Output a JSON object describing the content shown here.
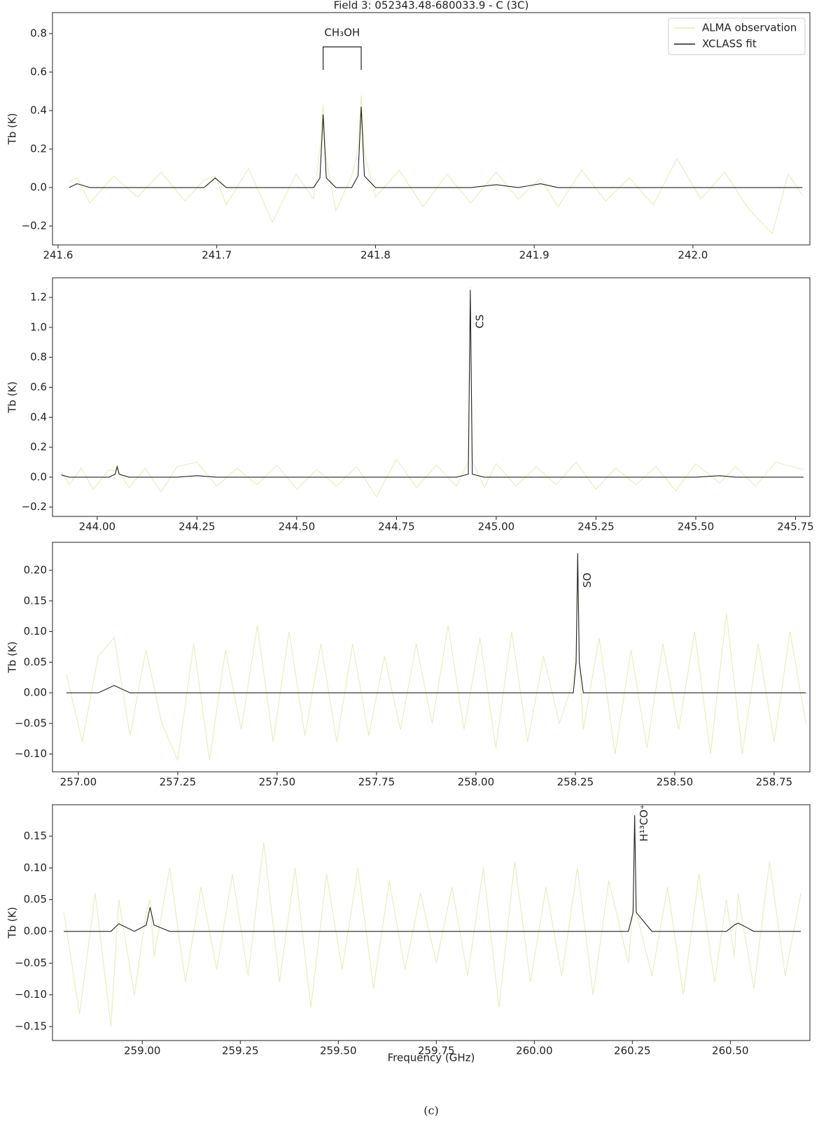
{
  "chart_data": [
    {
      "type": "line",
      "title": "Field 3: 052343.48-680033.9 - C (3C)",
      "y_label": "Tb (K)",
      "annotation": "CH₃OH",
      "legend": "upper right",
      "xlim": [
        241.5965,
        242.0737
      ],
      "ylim": [
        -0.298,
        0.909
      ],
      "xticks": [
        241.6,
        241.7,
        241.8,
        241.9,
        {
          "value": 242,
          "label": "242.0"
        }
      ],
      "yticks": [
        {
          "value": -0.2,
          "label": "−0.2"
        },
        {
          "value": 0,
          "label": "0.0"
        },
        0.2,
        0.4,
        0.6,
        0.8
      ],
      "x": [
        241.607,
        241.612,
        241.62,
        241.635,
        241.65,
        241.665,
        241.68,
        241.692,
        241.699,
        241.706,
        241.72,
        241.735,
        241.75,
        241.761,
        241.765,
        241.767,
        241.769,
        241.775,
        241.785,
        241.789,
        241.791,
        241.793,
        241.8,
        241.815,
        241.83,
        241.845,
        241.86,
        241.876,
        241.89,
        241.904,
        241.915,
        241.93,
        241.945,
        241.96,
        241.975,
        241.99,
        242.005,
        242.02,
        242.035,
        242.05,
        242.06,
        242.069
      ],
      "series": [
        {
          "name": "ALMA observation",
          "color": "#e6ebb4",
          "values": [
            0.03,
            0.05,
            -0.08,
            0.06,
            -0.05,
            0.08,
            -0.07,
            0.04,
            0.06,
            -0.09,
            0.1,
            -0.18,
            0.07,
            -0.06,
            0.2,
            0.43,
            0.15,
            -0.12,
            0.06,
            0.2,
            0.48,
            0.18,
            -0.05,
            0.09,
            -0.1,
            0.07,
            -0.08,
            0.08,
            -0.06,
            0.05,
            -0.1,
            0.09,
            -0.07,
            0.05,
            -0.09,
            0.15,
            -0.06,
            0.08,
            -0.11,
            -0.24,
            0.07,
            -0.04
          ]
        },
        {
          "name": "XCLASS fit",
          "color": "#222222",
          "values": [
            0,
            0.02,
            0,
            0,
            0,
            0,
            0,
            0,
            0.05,
            0,
            0,
            0,
            0,
            0,
            0.05,
            0.38,
            0.05,
            0,
            0,
            0.06,
            0.42,
            0.06,
            0,
            0,
            0,
            0,
            0,
            0.015,
            0,
            0.02,
            0,
            0,
            0,
            0,
            0,
            0,
            0,
            0,
            0,
            0,
            0,
            0
          ]
        }
      ]
    },
    {
      "type": "line",
      "y_label": "Tb (K)",
      "annotation": "CS",
      "xlim": [
        243.888,
        245.786
      ],
      "ylim": [
        -0.262,
        1.331
      ],
      "xticks": [
        {
          "value": 244,
          "label": "244.00"
        },
        244.25,
        {
          "value": 244.5,
          "label": "244.50"
        },
        244.75,
        {
          "value": 245,
          "label": "245.00"
        },
        245.25,
        {
          "value": 245.5,
          "label": "245.50"
        },
        245.75
      ],
      "yticks": [
        {
          "value": -0.2,
          "label": "−0.2"
        },
        {
          "value": 0,
          "label": "0.0"
        },
        0.2,
        0.4,
        0.6,
        0.8,
        {
          "value": 1,
          "label": "1.0"
        },
        1.2
      ],
      "x": [
        243.91,
        243.93,
        243.96,
        243.99,
        244.03,
        244.045,
        244.05,
        244.055,
        244.08,
        244.12,
        244.16,
        244.2,
        244.25,
        244.3,
        244.35,
        244.4,
        244.45,
        244.5,
        244.55,
        244.6,
        244.65,
        244.7,
        244.75,
        244.8,
        244.85,
        244.9,
        244.93,
        244.935,
        244.94,
        244.97,
        245,
        245.05,
        245.1,
        245.15,
        245.2,
        245.25,
        245.3,
        245.35,
        245.4,
        245.45,
        245.5,
        245.56,
        245.6,
        245.65,
        245.7,
        245.77
      ],
      "series": [
        {
          "name": "ALMA observation",
          "color": "#e6ebb4",
          "values": [
            0.04,
            -0.05,
            0.06,
            -0.08,
            0.05,
            0.04,
            0.08,
            0.03,
            -0.07,
            0.06,
            -0.1,
            0.07,
            0.1,
            -0.06,
            0.06,
            -0.05,
            0.08,
            -0.08,
            0.05,
            -0.06,
            0.07,
            -0.13,
            0.12,
            -0.07,
            0.08,
            -0.06,
            0.1,
            1.27,
            0.11,
            -0.07,
            0.09,
            -0.06,
            0.07,
            -0.05,
            0.1,
            -0.08,
            0.06,
            -0.05,
            0.07,
            -0.09,
            0.09,
            -0.04,
            0.07,
            -0.06,
            0.1,
            0.05
          ]
        },
        {
          "name": "XCLASS fit",
          "color": "#222222",
          "values": [
            0.015,
            0,
            0,
            0,
            0,
            0.02,
            0.07,
            0.02,
            0,
            0,
            0,
            0,
            0.01,
            0,
            0,
            0,
            0,
            0,
            0,
            0,
            0,
            0,
            0,
            0,
            0,
            0,
            0.02,
            1.25,
            0.02,
            0,
            0,
            0,
            0,
            0,
            0,
            0,
            0,
            0,
            0,
            0,
            0,
            0.01,
            0,
            0,
            0,
            0
          ]
        }
      ]
    },
    {
      "type": "line",
      "y_label": "Tb (K)",
      "annotation": "SO",
      "xlim": [
        256.935,
        258.84
      ],
      "ylim": [
        -0.129,
        0.2457
      ],
      "xticks": [
        {
          "value": 257,
          "label": "257.00"
        },
        257.25,
        {
          "value": 257.5,
          "label": "257.50"
        },
        257.75,
        {
          "value": 258,
          "label": "258.00"
        },
        258.25,
        {
          "value": 258.5,
          "label": "258.50"
        },
        258.75
      ],
      "yticks": [
        {
          "value": -0.1,
          "label": "−0.10"
        },
        {
          "value": -0.05,
          "label": "−0.05"
        },
        {
          "value": 0,
          "label": "0.00"
        },
        0.05,
        {
          "value": 0.1,
          "label": "0.10"
        },
        0.15,
        {
          "value": 0.2,
          "label": "0.20"
        }
      ],
      "x": [
        256.97,
        257.01,
        257.05,
        257.09,
        257.13,
        257.17,
        257.21,
        257.25,
        257.29,
        257.33,
        257.37,
        257.41,
        257.45,
        257.49,
        257.53,
        257.57,
        257.61,
        257.65,
        257.69,
        257.73,
        257.77,
        257.81,
        257.85,
        257.89,
        257.93,
        257.97,
        258.01,
        258.05,
        258.09,
        258.13,
        258.17,
        258.21,
        258.245,
        258.252,
        258.256,
        258.26,
        258.27,
        258.31,
        258.35,
        258.39,
        258.43,
        258.47,
        258.51,
        258.55,
        258.59,
        258.63,
        258.67,
        258.71,
        258.75,
        258.79,
        258.83
      ],
      "series": [
        {
          "name": "ALMA observation",
          "color": "#e6ebb4",
          "values": [
            0.03,
            -0.08,
            0.06,
            0.09,
            -0.07,
            0.07,
            -0.05,
            -0.11,
            0.08,
            -0.11,
            0.07,
            -0.06,
            0.11,
            -0.08,
            0.1,
            -0.07,
            0.08,
            -0.08,
            0.08,
            -0.07,
            0.06,
            -0.06,
            0.08,
            -0.05,
            0.11,
            -0.06,
            0.09,
            -0.09,
            0.1,
            -0.08,
            0.06,
            -0.05,
            0.02,
            0.06,
            0.2,
            0.05,
            -0.06,
            0.09,
            -0.1,
            0.07,
            -0.09,
            0.08,
            -0.06,
            0.1,
            -0.1,
            0.13,
            -0.1,
            0.08,
            -0.08,
            0.1,
            -0.05
          ]
        },
        {
          "name": "XCLASS fit",
          "color": "#222222",
          "values": [
            0,
            0,
            0,
            0.012,
            0,
            0,
            0,
            0,
            0,
            0,
            0,
            0,
            0,
            0,
            0,
            0,
            0,
            0,
            0,
            0,
            0,
            0,
            0,
            0,
            0,
            0,
            0,
            0,
            0,
            0,
            0,
            0,
            0,
            0.05,
            0.228,
            0.05,
            0,
            0,
            0,
            0,
            0,
            0,
            0,
            0,
            0,
            0,
            0,
            0,
            0,
            0,
            0
          ]
        }
      ]
    },
    {
      "type": "line",
      "y_label": "Tb (K)",
      "x_label": "Frequency (GHz)",
      "annotation": "H¹³CO⁺",
      "xlim": [
        258.771,
        260.703
      ],
      "ylim": [
        -0.172,
        0.1996
      ],
      "xticks": [
        {
          "value": 259,
          "label": "259.00"
        },
        259.25,
        {
          "value": 259.5,
          "label": "259.50"
        },
        259.75,
        {
          "value": 260,
          "label": "260.00"
        },
        260.25,
        {
          "value": 260.5,
          "label": "260.50"
        }
      ],
      "yticks": [
        {
          "value": -0.15,
          "label": "−0.15"
        },
        {
          "value": -0.1,
          "label": "−0.10"
        },
        {
          "value": -0.05,
          "label": "−0.05"
        },
        {
          "value": 0,
          "label": "0.00"
        },
        0.05,
        {
          "value": 0.1,
          "label": "0.10"
        },
        0.15
      ],
      "x": [
        258.8,
        258.84,
        258.88,
        258.92,
        258.94,
        258.98,
        259.01,
        259.02,
        259.03,
        259.07,
        259.11,
        259.15,
        259.19,
        259.23,
        259.27,
        259.31,
        259.35,
        259.39,
        259.43,
        259.47,
        259.51,
        259.55,
        259.59,
        259.63,
        259.67,
        259.71,
        259.75,
        259.79,
        259.83,
        259.87,
        259.91,
        259.95,
        259.99,
        260.03,
        260.07,
        260.11,
        260.15,
        260.19,
        260.24,
        260.252,
        260.256,
        260.26,
        260.3,
        260.34,
        260.38,
        260.42,
        260.46,
        260.49,
        260.51,
        260.52,
        260.53,
        260.56,
        260.6,
        260.64,
        260.68
      ],
      "series": [
        {
          "name": "ALMA observation",
          "color": "#e6ebb4",
          "values": [
            0.03,
            -0.13,
            0.06,
            -0.15,
            0.05,
            -0.1,
            0.03,
            0.05,
            -0.04,
            0.1,
            -0.08,
            0.07,
            -0.06,
            0.09,
            -0.07,
            0.14,
            -0.08,
            0.1,
            -0.12,
            0.09,
            -0.06,
            0.1,
            -0.09,
            0.08,
            -0.06,
            0.06,
            -0.05,
            0.07,
            -0.07,
            0.1,
            -0.12,
            0.11,
            -0.08,
            0.07,
            -0.07,
            0.1,
            -0.1,
            0.08,
            -0.05,
            0.04,
            0.17,
            0.03,
            -0.07,
            0.07,
            -0.1,
            0.09,
            -0.08,
            0.05,
            -0.04,
            0.06,
            0.02,
            -0.09,
            0.11,
            -0.07,
            0.06
          ]
        },
        {
          "name": "XCLASS fit",
          "color": "#222222",
          "values": [
            0,
            0,
            0,
            0,
            0.012,
            0,
            0.01,
            0.038,
            0.01,
            0,
            0,
            0,
            0,
            0,
            0,
            0,
            0,
            0,
            0,
            0,
            0,
            0,
            0,
            0,
            0,
            0,
            0,
            0,
            0,
            0,
            0,
            0,
            0,
            0,
            0,
            0,
            0,
            0,
            0,
            0.03,
            0.183,
            0.03,
            0,
            0,
            0,
            0,
            0,
            0,
            0.01,
            0.013,
            0.01,
            0,
            0,
            0,
            0
          ]
        }
      ]
    }
  ],
  "caption": "(c)"
}
